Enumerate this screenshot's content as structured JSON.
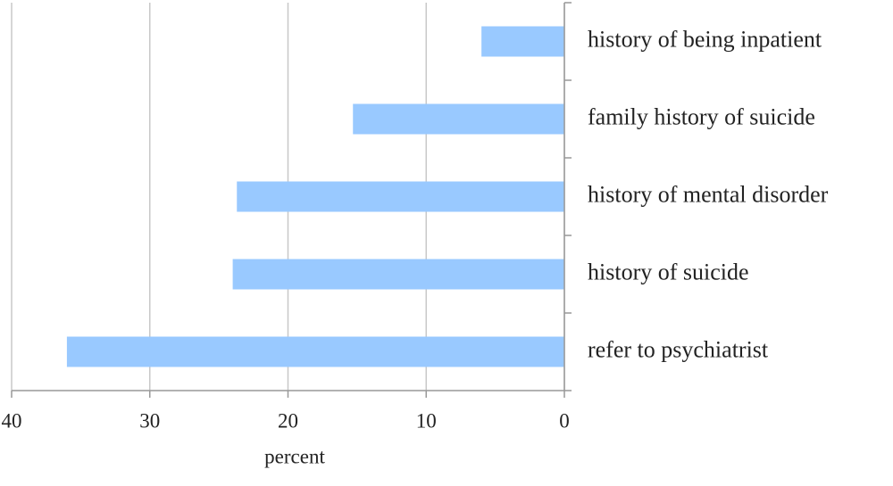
{
  "chart_data": {
    "type": "bar",
    "orientation": "horizontal",
    "categories": [
      "history of being inpatient",
      "family history of suicide",
      "history of mental disorder",
      "history of suicide",
      "refer to psychiatrist"
    ],
    "values": [
      6,
      15.3,
      23.7,
      24,
      36
    ],
    "color": "#99c9ff",
    "xlabel": "percent",
    "xlim": [
      40,
      0
    ],
    "xticks": [
      40,
      30,
      20,
      10,
      0
    ],
    "grid": true
  }
}
